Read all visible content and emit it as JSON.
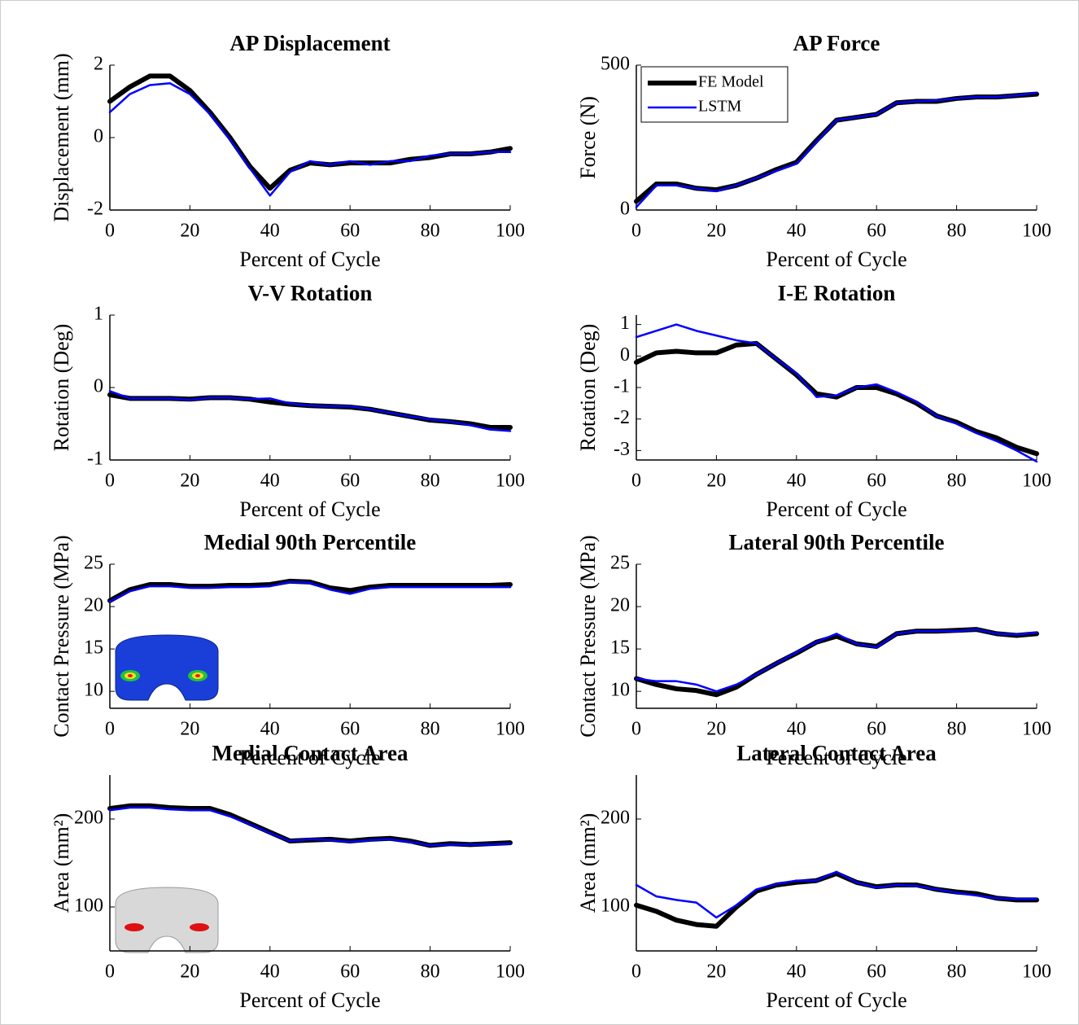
{
  "chart_data": [
    {
      "type": "line",
      "title": "AP Displacement",
      "xlabel": "Percent of Cycle",
      "ylabel": "Displacement (mm)",
      "x": [
        0,
        5,
        10,
        15,
        20,
        25,
        30,
        35,
        40,
        45,
        50,
        55,
        60,
        65,
        70,
        75,
        80,
        85,
        90,
        95,
        100
      ],
      "series": [
        {
          "color": "#000000",
          "values": [
            1.0,
            1.4,
            1.7,
            1.7,
            1.3,
            0.7,
            0.0,
            -0.8,
            -1.4,
            -0.9,
            -0.7,
            -0.75,
            -0.7,
            -0.7,
            -0.7,
            -0.6,
            -0.55,
            -0.45,
            -0.45,
            -0.4,
            -0.3
          ]
        },
        {
          "color": "#0000ff",
          "values": [
            0.7,
            1.2,
            1.45,
            1.5,
            1.2,
            0.65,
            -0.05,
            -0.85,
            -1.6,
            -0.95,
            -0.65,
            -0.75,
            -0.65,
            -0.75,
            -0.65,
            -0.65,
            -0.5,
            -0.45,
            -0.45,
            -0.4,
            -0.4
          ]
        }
      ],
      "xlim": [
        0,
        100
      ],
      "ylim": [
        -2,
        2
      ],
      "xticks": [
        0,
        20,
        40,
        60,
        80,
        100
      ],
      "yticks": [
        -2,
        0,
        2
      ]
    },
    {
      "type": "line",
      "title": "AP Force",
      "xlabel": "Percent of Cycle",
      "ylabel": "Force (N)",
      "x": [
        0,
        5,
        10,
        15,
        20,
        25,
        30,
        35,
        40,
        45,
        50,
        55,
        60,
        65,
        70,
        75,
        80,
        85,
        90,
        95,
        100
      ],
      "series": [
        {
          "name": "FE Model",
          "color": "#000000",
          "values": [
            30,
            90,
            90,
            75,
            70,
            85,
            110,
            140,
            165,
            240,
            310,
            320,
            330,
            370,
            375,
            375,
            385,
            390,
            390,
            395,
            400
          ]
        },
        {
          "name": "LSTM",
          "color": "#0000ff",
          "values": [
            10,
            85,
            85,
            75,
            65,
            85,
            110,
            135,
            160,
            235,
            310,
            320,
            330,
            370,
            375,
            378,
            385,
            390,
            390,
            395,
            405
          ]
        }
      ],
      "xlim": [
        0,
        100
      ],
      "ylim": [
        0,
        500
      ],
      "xticks": [
        0,
        20,
        40,
        60,
        80,
        100
      ],
      "yticks": [
        0,
        500
      ],
      "legend": "upper left"
    },
    {
      "type": "line",
      "title": "V-V Rotation",
      "xlabel": "Percent of Cycle",
      "ylabel": "Rotation (Deg)",
      "x": [
        0,
        5,
        10,
        15,
        20,
        25,
        30,
        35,
        40,
        45,
        50,
        55,
        60,
        65,
        70,
        75,
        80,
        85,
        90,
        95,
        100
      ],
      "series": [
        {
          "color": "#000000",
          "values": [
            -0.1,
            -0.15,
            -0.15,
            -0.15,
            -0.16,
            -0.14,
            -0.14,
            -0.16,
            -0.2,
            -0.23,
            -0.25,
            -0.26,
            -0.27,
            -0.3,
            -0.35,
            -0.4,
            -0.45,
            -0.47,
            -0.5,
            -0.55,
            -0.55
          ]
        },
        {
          "color": "#0000ff",
          "values": [
            -0.05,
            -0.15,
            -0.15,
            -0.15,
            -0.17,
            -0.14,
            -0.14,
            -0.16,
            -0.15,
            -0.22,
            -0.25,
            -0.26,
            -0.26,
            -0.3,
            -0.35,
            -0.4,
            -0.44,
            -0.47,
            -0.52,
            -0.58,
            -0.6
          ]
        }
      ],
      "xlim": [
        0,
        100
      ],
      "ylim": [
        -1,
        1
      ],
      "xticks": [
        0,
        20,
        40,
        60,
        80,
        100
      ],
      "yticks": [
        -1,
        0,
        1
      ]
    },
    {
      "type": "line",
      "title": "I-E Rotation",
      "xlabel": "Percent of Cycle",
      "ylabel": "Rotation (Deg)",
      "x": [
        0,
        5,
        10,
        15,
        20,
        25,
        30,
        35,
        40,
        45,
        50,
        55,
        60,
        65,
        70,
        75,
        80,
        85,
        90,
        95,
        100
      ],
      "series": [
        {
          "color": "#000000",
          "values": [
            -0.2,
            0.1,
            0.15,
            0.1,
            0.1,
            0.35,
            0.4,
            -0.1,
            -0.6,
            -1.2,
            -1.3,
            -1.0,
            -1.0,
            -1.2,
            -1.5,
            -1.9,
            -2.1,
            -2.4,
            -2.6,
            -2.9,
            -3.1
          ]
        },
        {
          "color": "#0000ff",
          "values": [
            0.6,
            0.8,
            1.0,
            0.8,
            0.65,
            0.5,
            0.4,
            -0.1,
            -0.55,
            -1.3,
            -1.25,
            -1.0,
            -0.9,
            -1.15,
            -1.45,
            -1.9,
            -2.15,
            -2.45,
            -2.7,
            -3.0,
            -3.35
          ]
        }
      ],
      "xlim": [
        0,
        100
      ],
      "ylim": [
        -3.3,
        1.3
      ],
      "xticks": [
        0,
        20,
        40,
        60,
        80,
        100
      ],
      "yticks": [
        -3,
        -2,
        -1,
        0,
        1
      ]
    },
    {
      "type": "line",
      "title": "Medial 90th Percentile",
      "xlabel": "Percent of Cycle",
      "ylabel": "Contact Pressure (MPa)",
      "x": [
        0,
        5,
        10,
        15,
        20,
        25,
        30,
        35,
        40,
        45,
        50,
        55,
        60,
        65,
        70,
        75,
        80,
        85,
        90,
        95,
        100
      ],
      "series": [
        {
          "color": "#000000",
          "values": [
            20.7,
            22.0,
            22.6,
            22.6,
            22.4,
            22.4,
            22.5,
            22.5,
            22.6,
            23.0,
            22.9,
            22.2,
            21.9,
            22.3,
            22.5,
            22.5,
            22.5,
            22.5,
            22.5,
            22.5,
            22.6
          ]
        },
        {
          "color": "#0000ff",
          "values": [
            20.6,
            21.8,
            22.4,
            22.4,
            22.2,
            22.2,
            22.3,
            22.3,
            22.4,
            22.9,
            22.8,
            22.0,
            21.5,
            22.1,
            22.3,
            22.3,
            22.3,
            22.3,
            22.3,
            22.3,
            22.3
          ]
        }
      ],
      "xlim": [
        0,
        100
      ],
      "ylim": [
        8,
        25
      ],
      "xticks": [
        0,
        20,
        40,
        60,
        80,
        100
      ],
      "yticks": [
        10,
        15,
        20,
        25
      ]
    },
    {
      "type": "line",
      "title": "Lateral 90th Percentile",
      "xlabel": "Percent of Cycle",
      "ylabel": "Contact Pressure (MPa)",
      "x": [
        0,
        5,
        10,
        15,
        20,
        25,
        30,
        35,
        40,
        45,
        50,
        55,
        60,
        65,
        70,
        75,
        80,
        85,
        90,
        95,
        100
      ],
      "series": [
        {
          "color": "#000000",
          "values": [
            11.5,
            10.8,
            10.3,
            10.1,
            9.6,
            10.5,
            12.0,
            13.3,
            14.5,
            15.8,
            16.5,
            15.6,
            15.3,
            16.8,
            17.1,
            17.1,
            17.2,
            17.3,
            16.8,
            16.6,
            16.8
          ]
        },
        {
          "color": "#0000ff",
          "values": [
            11.5,
            11.2,
            11.2,
            10.8,
            10.0,
            10.8,
            12.0,
            13.3,
            14.6,
            15.8,
            16.8,
            15.6,
            15.2,
            16.8,
            17.1,
            17.1,
            17.1,
            17.3,
            16.8,
            16.7,
            16.9
          ]
        }
      ],
      "xlim": [
        0,
        100
      ],
      "ylim": [
        8,
        25
      ],
      "xticks": [
        0,
        20,
        40,
        60,
        80,
        100
      ],
      "yticks": [
        10,
        15,
        20,
        25
      ]
    },
    {
      "type": "line",
      "title": "Medial Contact Area",
      "xlabel": "Percent of Cycle",
      "ylabel": "Area (mm²)",
      "x": [
        0,
        5,
        10,
        15,
        20,
        25,
        30,
        35,
        40,
        45,
        50,
        55,
        60,
        65,
        70,
        75,
        80,
        85,
        90,
        95,
        100
      ],
      "series": [
        {
          "color": "#000000",
          "values": [
            212,
            215,
            215,
            213,
            212,
            212,
            205,
            195,
            185,
            175,
            176,
            177,
            175,
            177,
            178,
            175,
            170,
            172,
            171,
            172,
            173
          ]
        },
        {
          "color": "#0000ff",
          "values": [
            210,
            213,
            213,
            211,
            210,
            210,
            203,
            194,
            184,
            175,
            177,
            176,
            174,
            176,
            177,
            174,
            170,
            171,
            171,
            171,
            172
          ]
        }
      ],
      "xlim": [
        0,
        100
      ],
      "ylim": [
        50,
        250
      ],
      "xticks": [
        0,
        20,
        40,
        60,
        80,
        100
      ],
      "yticks": [
        100,
        200
      ]
    },
    {
      "type": "line",
      "title": "Lateral Contact Area",
      "xlabel": "Percent of Cycle",
      "ylabel": "Area (mm²)",
      "x": [
        0,
        5,
        10,
        15,
        20,
        25,
        30,
        35,
        40,
        45,
        50,
        55,
        60,
        65,
        70,
        75,
        80,
        85,
        90,
        95,
        100
      ],
      "series": [
        {
          "color": "#000000",
          "values": [
            102,
            95,
            85,
            80,
            78,
            100,
            118,
            125,
            128,
            130,
            138,
            128,
            123,
            125,
            125,
            120,
            117,
            115,
            110,
            108,
            108
          ]
        },
        {
          "color": "#0000ff",
          "values": [
            125,
            112,
            108,
            105,
            88,
            102,
            120,
            126,
            130,
            130,
            140,
            128,
            122,
            125,
            124,
            120,
            116,
            113,
            110,
            109,
            109
          ]
        }
      ],
      "xlim": [
        0,
        100
      ],
      "ylim": [
        50,
        250
      ],
      "xticks": [
        0,
        20,
        40,
        60,
        80,
        100
      ],
      "yticks": [
        100,
        200
      ]
    }
  ]
}
